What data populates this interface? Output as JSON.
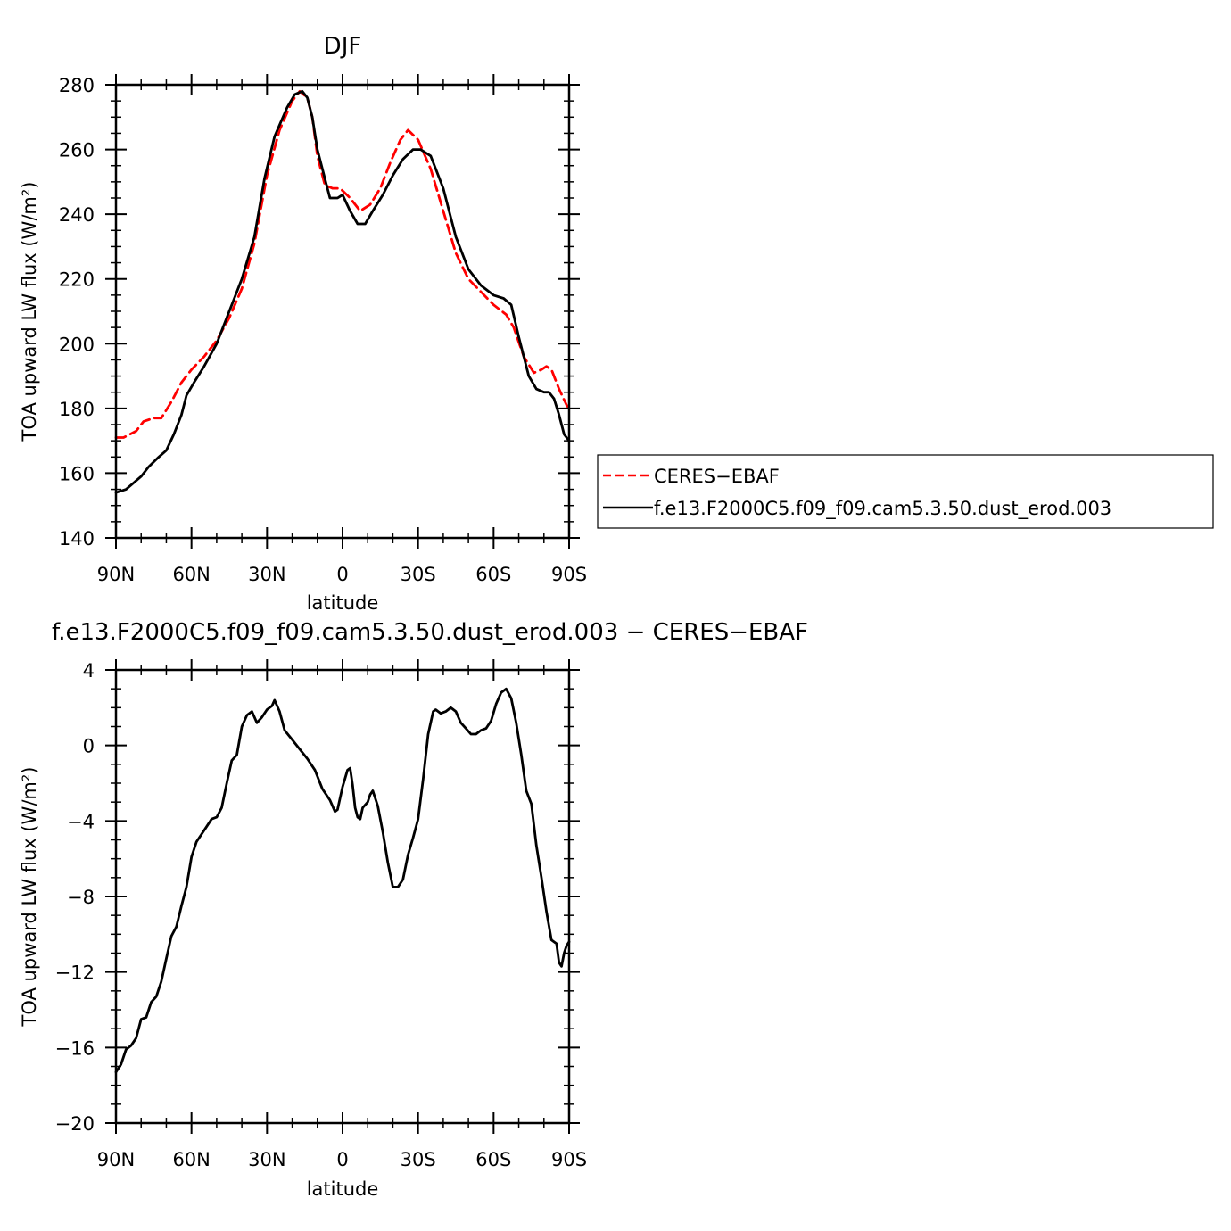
{
  "chart_data": [
    {
      "type": "line",
      "title": "DJF",
      "xlabel": "latitude",
      "ylabel": "TOA upward LW flux (W/m²)",
      "xlim": [
        90,
        -90
      ],
      "ylim": [
        140,
        280
      ],
      "x_ticks": [
        90,
        60,
        30,
        0,
        -30,
        -60,
        -90
      ],
      "x_tick_labels": [
        "90N",
        "60N",
        "30N",
        "0",
        "30S",
        "60S",
        "90S"
      ],
      "y_ticks": [
        140,
        160,
        180,
        200,
        220,
        240,
        260,
        280
      ],
      "y_tick_labels": [
        "140",
        "160",
        "180",
        "200",
        "220",
        "240",
        "260",
        "280"
      ],
      "grid": false,
      "legend_position": "right",
      "series": [
        {
          "name": "CERES−EBAF",
          "color": "#ff0000",
          "style": "dashed",
          "points": [
            [
              90,
              171
            ],
            [
              87,
              171
            ],
            [
              82,
              173
            ],
            [
              79,
              176
            ],
            [
              75,
              177
            ],
            [
              72,
              177
            ],
            [
              68,
              182
            ],
            [
              64,
              188
            ],
            [
              60,
              192
            ],
            [
              55,
              196
            ],
            [
              50,
              201
            ],
            [
              45,
              208
            ],
            [
              40,
              217
            ],
            [
              35,
              231
            ],
            [
              30,
              252
            ],
            [
              25,
              266
            ],
            [
              20,
              275
            ],
            [
              17,
              278
            ],
            [
              14,
              276
            ],
            [
              12,
              270
            ],
            [
              10,
              258
            ],
            [
              7,
              249
            ],
            [
              4,
              248
            ],
            [
              1,
              248
            ],
            [
              -3,
              245
            ],
            [
              -7,
              241
            ],
            [
              -11,
              243
            ],
            [
              -15,
              248
            ],
            [
              -19,
              256
            ],
            [
              -23,
              263
            ],
            [
              -26,
              266
            ],
            [
              -30,
              263
            ],
            [
              -35,
              254
            ],
            [
              -40,
              241
            ],
            [
              -45,
              228
            ],
            [
              -50,
              220
            ],
            [
              -55,
              216
            ],
            [
              -60,
              212
            ],
            [
              -65,
              209
            ],
            [
              -68,
              205
            ],
            [
              -72,
              196
            ],
            [
              -76,
              191
            ],
            [
              -79,
              192
            ],
            [
              -81,
              193
            ],
            [
              -83,
              192
            ],
            [
              -86,
              186
            ],
            [
              -89,
              181
            ],
            [
              -90,
              180
            ]
          ]
        },
        {
          "name": "f.e13.F2000C5.f09_f09.cam5.3.50.dust_erod.003",
          "color": "#000000",
          "style": "solid",
          "points": [
            [
              90,
              154
            ],
            [
              86,
              155
            ],
            [
              83,
              157
            ],
            [
              80,
              159
            ],
            [
              77,
              162
            ],
            [
              73,
              165
            ],
            [
              70,
              167
            ],
            [
              67,
              172
            ],
            [
              64,
              178
            ],
            [
              62,
              184
            ],
            [
              59,
              188
            ],
            [
              55,
              193
            ],
            [
              50,
              200
            ],
            [
              45,
              210
            ],
            [
              40,
              220
            ],
            [
              35,
              233
            ],
            [
              31,
              251
            ],
            [
              27,
              264
            ],
            [
              22,
              273
            ],
            [
              19,
              277
            ],
            [
              16,
              278
            ],
            [
              14,
              276
            ],
            [
              12,
              270
            ],
            [
              10,
              260
            ],
            [
              7,
              251
            ],
            [
              5,
              245
            ],
            [
              2,
              245
            ],
            [
              0,
              246
            ],
            [
              -3,
              241
            ],
            [
              -6,
              237
            ],
            [
              -9,
              237
            ],
            [
              -12,
              241
            ],
            [
              -16,
              246
            ],
            [
              -20,
              252
            ],
            [
              -24,
              257
            ],
            [
              -28,
              260
            ],
            [
              -31,
              260
            ],
            [
              -35,
              258
            ],
            [
              -40,
              248
            ],
            [
              -45,
              233
            ],
            [
              -50,
              223
            ],
            [
              -55,
              218
            ],
            [
              -60,
              215
            ],
            [
              -64,
              214
            ],
            [
              -67,
              212
            ],
            [
              -70,
              202
            ],
            [
              -74,
              190
            ],
            [
              -77,
              186
            ],
            [
              -80,
              185
            ],
            [
              -82,
              185
            ],
            [
              -84,
              183
            ],
            [
              -86,
              178
            ],
            [
              -88,
              172
            ],
            [
              -90,
              170
            ]
          ]
        }
      ]
    },
    {
      "type": "line",
      "title": "f.e13.F2000C5.f09_f09.cam5.3.50.dust_erod.003 − CERES−EBAF",
      "xlabel": "latitude",
      "ylabel": "TOA upward LW flux (W/m²)",
      "xlim": [
        90,
        -90
      ],
      "ylim": [
        -20,
        4
      ],
      "x_ticks": [
        90,
        60,
        30,
        0,
        -30,
        -60,
        -90
      ],
      "x_tick_labels": [
        "90N",
        "60N",
        "30N",
        "0",
        "30S",
        "60S",
        "90S"
      ],
      "y_ticks": [
        -20,
        -16,
        -12,
        -8,
        -4,
        0,
        4
      ],
      "y_tick_labels": [
        "−20",
        "−16",
        "−12",
        "−8",
        "−4",
        "0",
        "4"
      ],
      "grid": false,
      "series": [
        {
          "color": "#000000",
          "style": "solid",
          "points": [
            [
              90,
              -17.3
            ],
            [
              88,
              -16.9
            ],
            [
              86,
              -16.1
            ],
            [
              84,
              -15.9
            ],
            [
              82,
              -15.5
            ],
            [
              80,
              -14.5
            ],
            [
              78,
              -14.4
            ],
            [
              76,
              -13.6
            ],
            [
              74,
              -13.3
            ],
            [
              72,
              -12.5
            ],
            [
              70,
              -11.3
            ],
            [
              68,
              -10.1
            ],
            [
              66,
              -9.6
            ],
            [
              64,
              -8.5
            ],
            [
              62,
              -7.5
            ],
            [
              60,
              -5.9
            ],
            [
              58,
              -5.1
            ],
            [
              56,
              -4.7
            ],
            [
              54,
              -4.3
            ],
            [
              52,
              -3.9
            ],
            [
              50,
              -3.8
            ],
            [
              48,
              -3.3
            ],
            [
              46,
              -2.0
            ],
            [
              44,
              -0.8
            ],
            [
              42,
              -0.5
            ],
            [
              40,
              1.0
            ],
            [
              38,
              1.6
            ],
            [
              36,
              1.8
            ],
            [
              34,
              1.2
            ],
            [
              32,
              1.5
            ],
            [
              30,
              1.9
            ],
            [
              28,
              2.1
            ],
            [
              27,
              2.4
            ],
            [
              25,
              1.8
            ],
            [
              23,
              0.8
            ],
            [
              20,
              0.3
            ],
            [
              17,
              -0.2
            ],
            [
              14,
              -0.7
            ],
            [
              11,
              -1.3
            ],
            [
              8,
              -2.3
            ],
            [
              5,
              -2.9
            ],
            [
              3,
              -3.5
            ],
            [
              2,
              -3.4
            ],
            [
              0,
              -2.2
            ],
            [
              -2,
              -1.3
            ],
            [
              -3,
              -1.2
            ],
            [
              -4,
              -2.1
            ],
            [
              -5,
              -3.3
            ],
            [
              -6,
              -3.8
            ],
            [
              -7,
              -3.9
            ],
            [
              -8,
              -3.3
            ],
            [
              -10,
              -3.0
            ],
            [
              -11,
              -2.6
            ],
            [
              -12,
              -2.4
            ],
            [
              -14,
              -3.2
            ],
            [
              -16,
              -4.6
            ],
            [
              -18,
              -6.2
            ],
            [
              -20,
              -7.5
            ],
            [
              -22,
              -7.5
            ],
            [
              -24,
              -7.1
            ],
            [
              -26,
              -5.8
            ],
            [
              -28,
              -4.9
            ],
            [
              -30,
              -3.9
            ],
            [
              -32,
              -1.8
            ],
            [
              -34,
              0.6
            ],
            [
              -36,
              1.8
            ],
            [
              -37,
              1.9
            ],
            [
              -39,
              1.7
            ],
            [
              -41,
              1.8
            ],
            [
              -43,
              2.0
            ],
            [
              -45,
              1.8
            ],
            [
              -47,
              1.2
            ],
            [
              -49,
              0.9
            ],
            [
              -51,
              0.6
            ],
            [
              -53,
              0.6
            ],
            [
              -55,
              0.8
            ],
            [
              -57,
              0.9
            ],
            [
              -59,
              1.3
            ],
            [
              -61,
              2.2
            ],
            [
              -63,
              2.8
            ],
            [
              -65,
              3.0
            ],
            [
              -67,
              2.5
            ],
            [
              -69,
              1.2
            ],
            [
              -71,
              -0.5
            ],
            [
              -73,
              -2.4
            ],
            [
              -75,
              -3.1
            ],
            [
              -77,
              -5.3
            ],
            [
              -79,
              -7.0
            ],
            [
              -81,
              -8.8
            ],
            [
              -83,
              -10.3
            ],
            [
              -85,
              -10.5
            ],
            [
              -86,
              -11.5
            ],
            [
              -87,
              -11.7
            ],
            [
              -88,
              -11.0
            ],
            [
              -89,
              -10.6
            ],
            [
              -90,
              -10.4
            ]
          ]
        }
      ]
    }
  ]
}
